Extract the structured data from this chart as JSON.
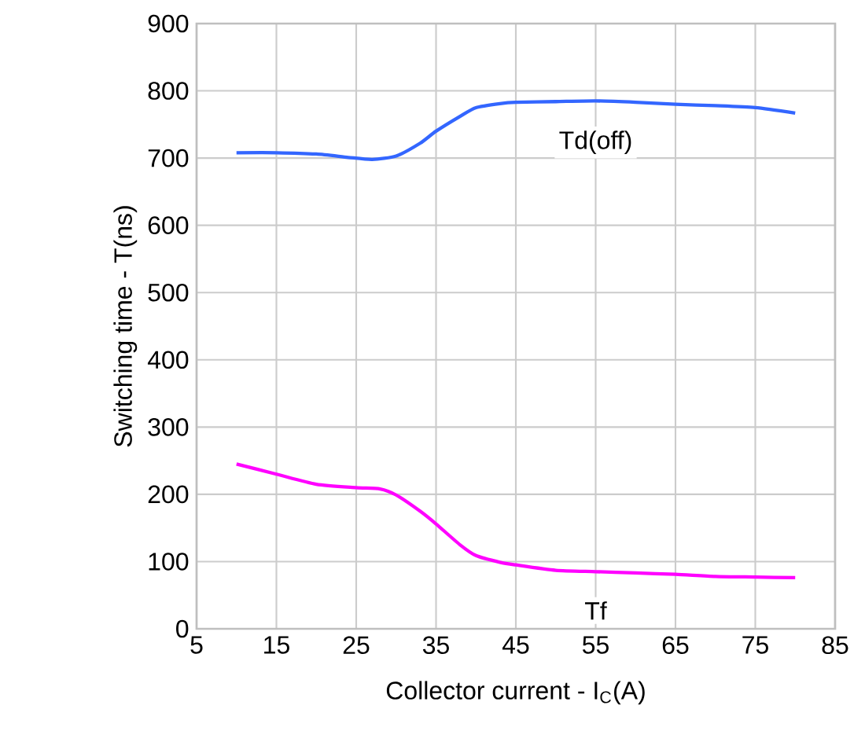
{
  "chart_data": {
    "type": "line",
    "xlabel": "Collector  current - I$_{C}$(A)",
    "ylabel": "Switching time - T(ns)",
    "xlim": [
      5,
      85
    ],
    "xticks": [
      5,
      15,
      25,
      35,
      45,
      55,
      65,
      75,
      85
    ],
    "ylim": [
      0,
      900
    ],
    "yticks": [
      0,
      100,
      200,
      300,
      400,
      500,
      600,
      700,
      800,
      900
    ],
    "grid": true,
    "legend": false,
    "series": [
      {
        "name": "Td(off)",
        "color": "#3366ff",
        "x": [
          10,
          15,
          20,
          24,
          27,
          30,
          33,
          35,
          38,
          40,
          43,
          45,
          50,
          55,
          60,
          65,
          70,
          75,
          80
        ],
        "values": [
          708,
          708,
          706,
          701,
          698,
          703,
          722,
          740,
          762,
          775,
          781,
          783,
          784,
          785,
          783,
          780,
          778,
          775,
          767
        ]
      },
      {
        "name": "Tf",
        "color": "#ff00ff",
        "x": [
          10,
          15,
          20,
          25,
          28,
          30,
          33,
          35,
          38,
          40,
          43,
          45,
          50,
          55,
          60,
          65,
          70,
          75,
          80
        ],
        "values": [
          245,
          230,
          215,
          210,
          208,
          199,
          175,
          156,
          125,
          109,
          99,
          95,
          87,
          85,
          83,
          81,
          78,
          77,
          76
        ]
      }
    ]
  }
}
